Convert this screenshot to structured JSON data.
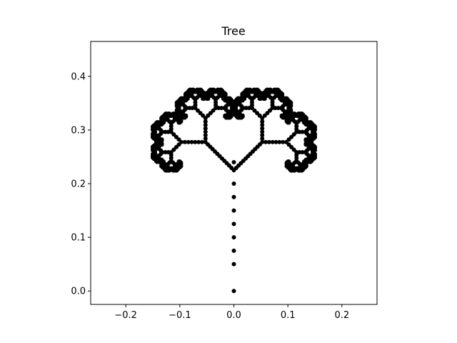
{
  "chart_data": {
    "type": "scatter",
    "title": "Tree",
    "xlabel": "",
    "ylabel": "",
    "xlim": [
      -0.265,
      0.265
    ],
    "ylim": [
      -0.025,
      0.465
    ],
    "xticks": [
      -0.2,
      -0.1,
      0.0,
      0.1,
      0.2
    ],
    "xtick_labels": [
      "−0.2",
      "−0.1",
      "0.0",
      "0.1",
      "0.2"
    ],
    "yticks": [
      0.0,
      0.1,
      0.2,
      0.3,
      0.4
    ],
    "ytick_labels": [
      "0.0",
      "0.1",
      "0.2",
      "0.3",
      "0.4"
    ],
    "grid": false,
    "marker_color": "#000000",
    "marker": "filled-circle",
    "aspect": "equal",
    "fractal": {
      "description_type": "binary-tree-chaos-game",
      "trunk": [
        [
          0.0,
          0.0
        ],
        [
          0.0,
          0.225
        ]
      ],
      "branch_angle_deg": 45,
      "branch_scale": 0.6,
      "depth": 9
    },
    "points": [
      [
        0.0,
        0.0
      ],
      [
        0.0,
        0.05
      ],
      [
        0.0,
        0.075
      ],
      [
        0.0,
        0.1
      ],
      [
        0.0,
        0.125
      ],
      [
        0.0,
        0.15
      ],
      [
        0.0,
        0.175
      ],
      [
        0.0,
        0.2
      ],
      [
        0.0,
        0.225
      ],
      [
        0.0,
        0.24
      ]
    ]
  }
}
